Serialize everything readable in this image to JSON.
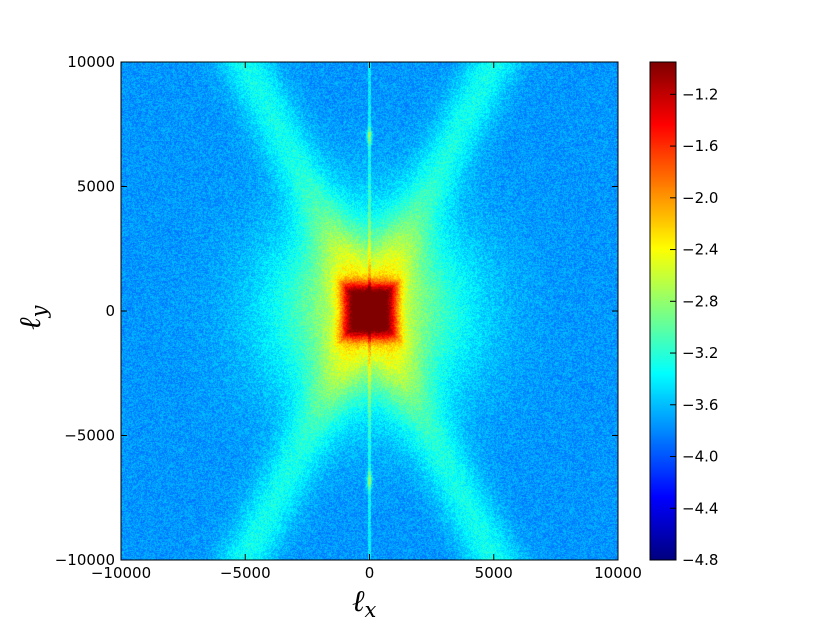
{
  "chart_data": {
    "type": "heatmap",
    "title": "",
    "xlabel": "ℓ",
    "xlabel_sub": "x",
    "ylabel": "ℓ",
    "ylabel_sub": "y",
    "xlim": [
      -10000,
      10000
    ],
    "ylim": [
      -10000,
      10000
    ],
    "x_ticks": [
      -10000,
      -5000,
      0,
      5000,
      10000
    ],
    "x_tick_labels": [
      "−10000",
      "−5000",
      "0",
      "5000",
      "10000"
    ],
    "y_ticks": [
      -10000,
      -5000,
      0,
      5000,
      10000
    ],
    "y_tick_labels": [
      "−10000",
      "−5000",
      "0",
      "5000",
      "10000"
    ],
    "grid": false,
    "colormap": "jet",
    "colorbar": {
      "range": [
        -4.8,
        -0.95
      ],
      "ticks": [
        -1.2,
        -1.6,
        -2.0,
        -2.4,
        -2.8,
        -3.2,
        -3.6,
        -4.0,
        -4.4,
        -4.8
      ],
      "tick_labels": [
        "−1.2",
        "−1.6",
        "−2.0",
        "−2.4",
        "−2.8",
        "−3.2",
        "−3.6",
        "−4.0",
        "−4.4",
        "−4.8"
      ]
    },
    "field_description": {
      "background_level": -3.75,
      "center_peak_level": -1.0,
      "central_core_halfwidth": 1100,
      "diagonal_stripe_slope": 2.0,
      "diagonal_stripe_level": -3.3,
      "vertical_line_level": -3.2,
      "vertical_hotspots_y": [
        7000,
        -6800
      ]
    }
  }
}
